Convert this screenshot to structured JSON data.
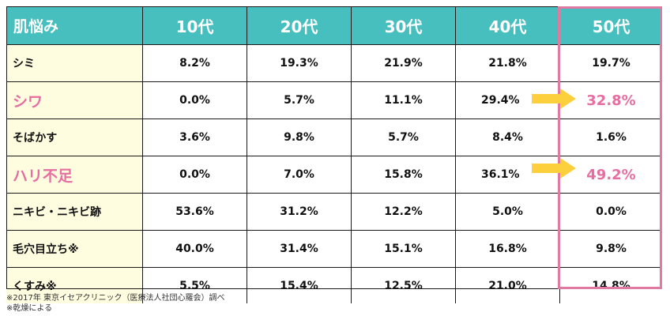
{
  "table": {
    "header": [
      "肌悩み",
      "10代",
      "20代",
      "30代",
      "40代",
      "50代"
    ],
    "rows": [
      {
        "label": "シミ",
        "values": [
          "8.2%",
          "19.3%",
          "21.9%",
          "21.8%",
          "19.7%"
        ],
        "highlight": false
      },
      {
        "label": "シワ",
        "values": [
          "0.0%",
          "5.7%",
          "11.1%",
          "29.4%",
          "32.8%"
        ],
        "highlight": true
      },
      {
        "label": "そばかす",
        "values": [
          "3.6%",
          "9.8%",
          "5.7%",
          "8.4%",
          "1.6%"
        ],
        "highlight": false
      },
      {
        "label": "ハリ不足",
        "values": [
          "0.0%",
          "7.0%",
          "15.8%",
          "36.1%",
          "49.2%"
        ],
        "highlight": true
      },
      {
        "label": "ニキビ・ニキビ跡",
        "values": [
          "53.6%",
          "31.2%",
          "12.2%",
          "5.0%",
          "0.0%"
        ],
        "highlight": false
      },
      {
        "label": "毛穴目立ち※",
        "values": [
          "40.0%",
          "31.4%",
          "15.1%",
          "16.8%",
          "9.8%"
        ],
        "highlight": false
      },
      {
        "label": "くすみ※",
        "values": [
          "5.5%",
          "15.4%",
          "12.5%",
          "21.0%",
          "14.8%"
        ],
        "highlight": false
      }
    ]
  },
  "notes": [
    "※2017年 東京イセアクリニック（医療法人社団心羅会）調べ",
    "※乾燥による"
  ],
  "colors": {
    "header_bg": "#46bfbe",
    "label_bg": "#fefde0",
    "highlight_text": "#e66ea0",
    "frame": "#e07aa3",
    "arrow": "#fcd03c"
  },
  "icons": {
    "arrow": "right-arrow-icon"
  }
}
